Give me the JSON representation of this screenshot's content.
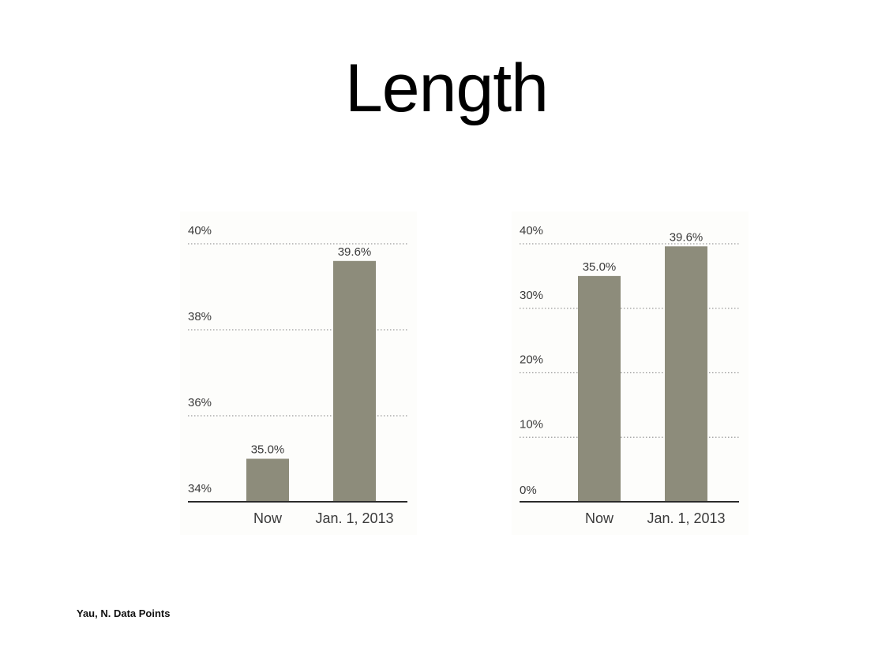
{
  "slide": {
    "title": "Length",
    "citation": "Yau, N. Data Points"
  },
  "colors": {
    "bar": "#8d8c7b",
    "axis": "#2b2b2b",
    "grid": "#9a9a9a",
    "text": "#3a3a3a"
  },
  "chart_data": [
    {
      "type": "bar",
      "categories": [
        "Now",
        "Jan. 1, 2013"
      ],
      "values": [
        35.0,
        39.6
      ],
      "data_labels": [
        "35.0%",
        "39.6%"
      ],
      "yticks": [
        34,
        36,
        38,
        40
      ],
      "ytick_labels": [
        "34%",
        "36%",
        "38%",
        "40%"
      ],
      "ylim": [
        34,
        40
      ],
      "grid": true
    },
    {
      "type": "bar",
      "categories": [
        "Now",
        "Jan. 1, 2013"
      ],
      "values": [
        35.0,
        39.6
      ],
      "data_labels": [
        "35.0%",
        "39.6%"
      ],
      "yticks": [
        0,
        10,
        20,
        30,
        40
      ],
      "ytick_labels": [
        "0%",
        "10%",
        "20%",
        "30%",
        "40%"
      ],
      "ylim": [
        0,
        40
      ],
      "grid": true
    }
  ]
}
